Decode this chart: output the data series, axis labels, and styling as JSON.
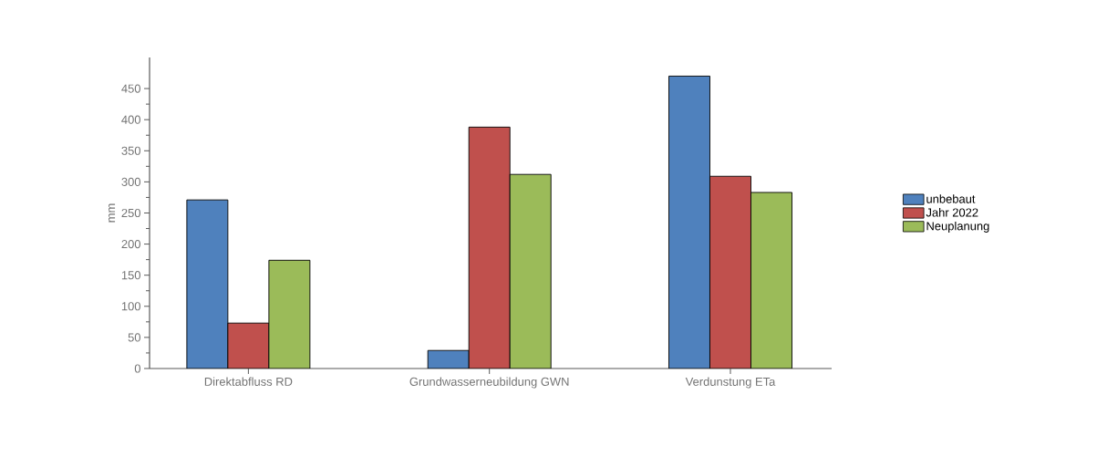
{
  "chart_data": {
    "type": "bar",
    "ylabel": "mm",
    "categories": [
      "Direktabfluss RD",
      "Grundwasserneubildung GWN",
      "Verdunstung ETa"
    ],
    "series": [
      {
        "name": "unbebaut",
        "color": "#4f81bd",
        "values": [
          271,
          29,
          470
        ]
      },
      {
        "name": "Jahr 2022",
        "color": "#c0504d",
        "values": [
          73,
          388,
          309
        ]
      },
      {
        "name": "Neuplanung",
        "color": "#9bbb59",
        "values": [
          174,
          312,
          283
        ]
      }
    ],
    "ylim": [
      0,
      500
    ],
    "yticks": [
      0,
      50,
      100,
      150,
      200,
      250,
      300,
      350,
      400,
      450
    ],
    "grid": false,
    "legend": "right"
  }
}
